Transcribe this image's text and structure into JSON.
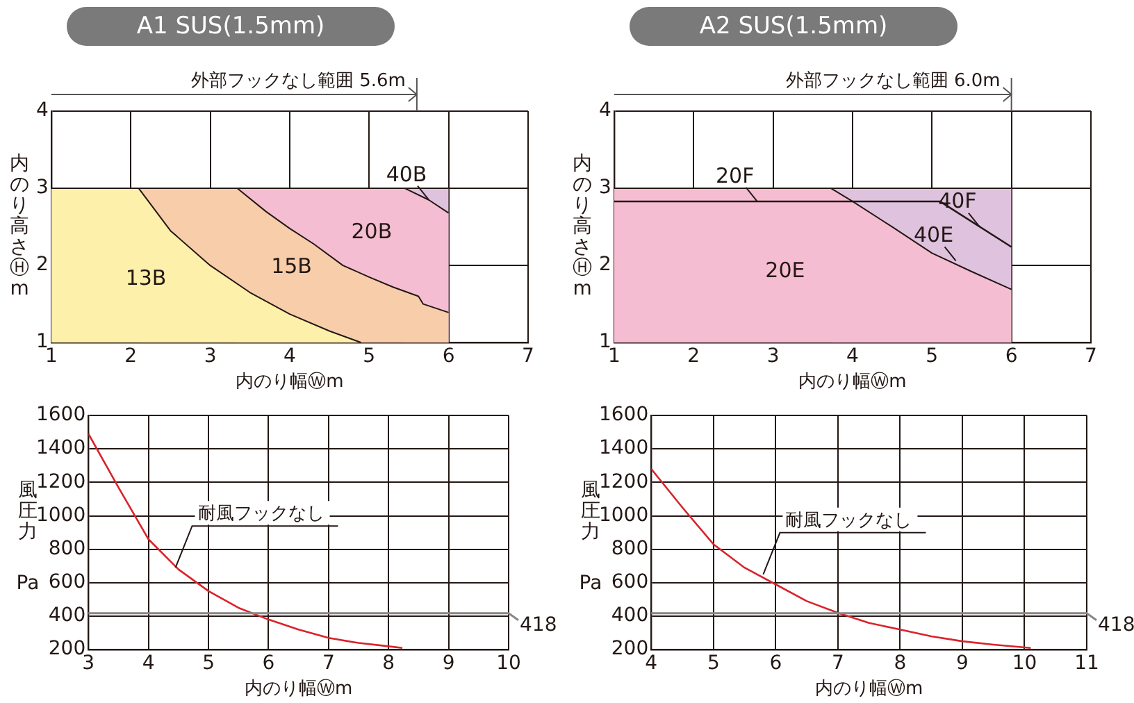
{
  "chart_data": [
    {
      "type": "area",
      "title": "A1 SUS(1.5mm)",
      "xlabel": "内のり幅Ⓦm",
      "ylabel": "内のり高さⒽm",
      "xlim": [
        1,
        7
      ],
      "ylim": [
        1,
        4
      ],
      "xticks": [
        1,
        2,
        3,
        4,
        5,
        6,
        7
      ],
      "yticks": [
        1,
        2,
        3,
        4
      ],
      "grid": true,
      "legend": false,
      "marker": "none",
      "series": [
        {
          "color": "#dfc2de",
          "x": [
            5.45,
            6
          ],
          "values": [
            3,
            3
          ]
        },
        {
          "name": "20B",
          "color": "#f5bdd1",
          "x": [
            3.34,
            5.45,
            5.75,
            6
          ],
          "values": [
            3,
            3,
            2.85,
            2.68
          ]
        },
        {
          "name": "15B",
          "color": "#f7cdaa",
          "x": [
            2.1,
            3.34,
            3.7,
            4,
            4.3,
            4.67,
            5,
            5.3,
            5.62,
            5.68,
            6
          ],
          "values": [
            3,
            3,
            2.7,
            2.48,
            2.28,
            2,
            1.85,
            1.72,
            1.6,
            1.5,
            1.39
          ]
        },
        {
          "name": "13B",
          "color": "#fdf0aa",
          "x": [
            1,
            2.1,
            2.5,
            3,
            3.5,
            4,
            4.5,
            4.9
          ],
          "values": [
            3,
            3,
            2.45,
            2,
            1.65,
            1.37,
            1.15,
            1
          ]
        }
      ],
      "annotations": [
        {
          "text": "40B",
          "x": 5.75,
          "y": 2.85
        }
      ],
      "ref_lines": [
        {
          "axis": "x",
          "value": 5.6,
          "label": "外部フックなし範囲 5.6m"
        }
      ]
    },
    {
      "type": "area",
      "title": "A2 SUS(1.5mm)",
      "xlabel": "内のり幅Ⓦm",
      "ylabel": "内のり高さⒽm",
      "xlim": [
        1,
        7
      ],
      "ylim": [
        1,
        4
      ],
      "xticks": [
        1,
        2,
        3,
        4,
        5,
        6,
        7
      ],
      "yticks": [
        1,
        2,
        3,
        4
      ],
      "grid": true,
      "legend": false,
      "marker": "none",
      "series": [
        {
          "color": "#dfc2de",
          "x": [
            3.73,
            6
          ],
          "values": [
            3,
            3
          ]
        },
        {
          "name": "20E",
          "color": "#f5bdd1",
          "x": [
            1,
            3.73,
            4,
            4.5,
            5,
            5.5,
            6
          ],
          "values": [
            3,
            3,
            2.83,
            2.5,
            2.16,
            1.92,
            1.69
          ]
        },
        {
          "type": "line",
          "color": "#231815",
          "x": [
            1,
            5.1,
            6
          ],
          "values": [
            2.83,
            2.83,
            2.24
          ]
        }
      ],
      "annotations": [
        {
          "text": "20F",
          "x": 2.8,
          "y": 2.83
        },
        {
          "text": "40F",
          "x": 5.6,
          "y": 2.5
        },
        {
          "text": "40E",
          "x": 5.3,
          "y": 2.06
        }
      ],
      "ref_lines": [
        {
          "axis": "x",
          "value": 6,
          "label": "外部フックなし範囲 6.0m"
        }
      ]
    },
    {
      "type": "line",
      "xlabel": "内のり幅Ⓦm",
      "ylabel": "風圧力 Pa",
      "xlim": [
        3,
        10
      ],
      "ylim": [
        200,
        1600
      ],
      "xticks": [
        3,
        4,
        5,
        6,
        7,
        8,
        9,
        10
      ],
      "yticks": [
        200,
        400,
        600,
        800,
        1000,
        1200,
        1400,
        1600
      ],
      "grid": true,
      "legend": false,
      "marker": "none",
      "series": [
        {
          "color": "#d9232a",
          "x": [
            3,
            3.5,
            4,
            4.5,
            5,
            5.5,
            6,
            6.5,
            7,
            7.5,
            8,
            8.23
          ],
          "values": [
            1490,
            1170,
            860,
            680,
            550,
            450,
            380,
            320,
            270,
            240,
            220,
            210
          ]
        }
      ],
      "annotations": [
        {
          "text": "耐風フックなし",
          "x": 4.45,
          "y": 690
        }
      ],
      "ref_lines": [
        {
          "axis": "y",
          "value": 418,
          "label": "418"
        }
      ]
    },
    {
      "type": "line",
      "xlabel": "内のり幅Ⓦm",
      "ylabel": "風圧力 Pa",
      "xlim": [
        4,
        11
      ],
      "ylim": [
        200,
        1600
      ],
      "xticks": [
        4,
        5,
        6,
        7,
        8,
        9,
        10,
        11
      ],
      "yticks": [
        200,
        400,
        600,
        800,
        1000,
        1200,
        1400,
        1600
      ],
      "grid": true,
      "legend": false,
      "marker": "none",
      "series": [
        {
          "color": "#d9232a",
          "x": [
            4,
            4.5,
            5,
            5.5,
            6,
            6.5,
            7,
            7.5,
            8,
            8.5,
            9,
            9.5,
            10.1
          ],
          "values": [
            1280,
            1050,
            830,
            690,
            590,
            490,
            420,
            360,
            320,
            280,
            250,
            230,
            210
          ]
        }
      ],
      "annotations": [
        {
          "text": "耐風フックなし",
          "x": 5.8,
          "y": 650
        }
      ],
      "ref_lines": [
        {
          "axis": "y",
          "value": 418,
          "label": "418"
        }
      ]
    }
  ]
}
